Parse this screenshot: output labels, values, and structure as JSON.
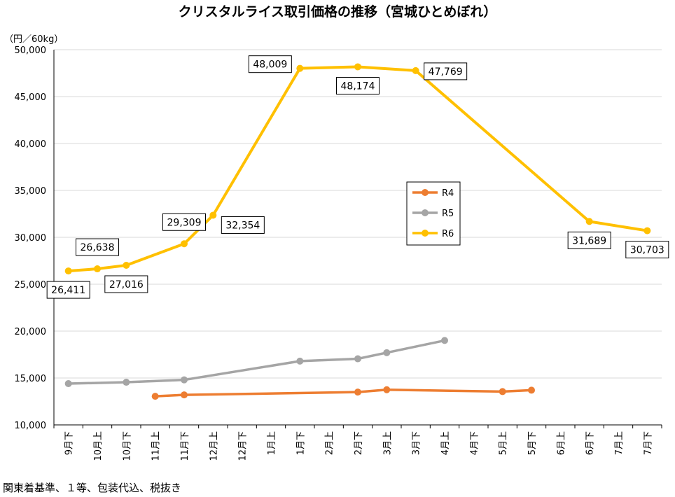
{
  "chart_data": {
    "type": "line",
    "title": "クリスタルライス取引価格の推移（宮城ひとめぼれ）",
    "unit_label": "（円／60kg）",
    "categories": [
      "9月下",
      "10月上",
      "10月下",
      "11月上",
      "11月下",
      "12月上",
      "12月下",
      "1月上",
      "1月下",
      "2月上",
      "2月下",
      "3月上",
      "3月下",
      "4月上",
      "4月下",
      "5月上",
      "5月下",
      "6月上",
      "6月下",
      "7月上",
      "7月下"
    ],
    "ylim": [
      10000,
      50000
    ],
    "yticks": [
      10000,
      15000,
      20000,
      25000,
      30000,
      35000,
      40000,
      45000,
      50000
    ],
    "ytick_labels": [
      "10,000",
      "15,000",
      "20,000",
      "25,000",
      "30,000",
      "35,000",
      "40,000",
      "45,000",
      "50,000"
    ],
    "grid": true,
    "legend_position": "center-right",
    "series": [
      {
        "name": "R4",
        "color": "#ED7D31",
        "points": [
          [
            3,
            13050
          ],
          [
            4,
            13200
          ],
          [
            10,
            13500
          ],
          [
            11,
            13750
          ],
          [
            15,
            13550
          ],
          [
            16,
            13700
          ]
        ]
      },
      {
        "name": "R5",
        "color": "#A5A5A5",
        "points": [
          [
            0,
            14400
          ],
          [
            2,
            14550
          ],
          [
            4,
            14800
          ],
          [
            8,
            16800
          ],
          [
            10,
            17050
          ],
          [
            11,
            17700
          ],
          [
            13,
            19000
          ]
        ]
      },
      {
        "name": "R6",
        "color": "#FFC000",
        "points": [
          [
            0,
            26411
          ],
          [
            1,
            26638
          ],
          [
            2,
            27016
          ],
          [
            4,
            29309
          ],
          [
            5,
            32354
          ],
          [
            8,
            48009
          ],
          [
            10,
            48174
          ],
          [
            12,
            47769
          ],
          [
            18,
            31689
          ],
          [
            20,
            30703
          ]
        ]
      }
    ],
    "data_labels": [
      {
        "text": "26,411",
        "idx": 0,
        "pos": "below"
      },
      {
        "text": "26,638",
        "idx": 1,
        "pos": "above"
      },
      {
        "text": "27,016",
        "idx": 2,
        "pos": "below"
      },
      {
        "text": "29,309",
        "idx": 3,
        "pos": "above"
      },
      {
        "text": "32,354",
        "idx": 4,
        "pos": "below-right"
      },
      {
        "text": "48,009",
        "idx": 5,
        "pos": "left"
      },
      {
        "text": "48,174",
        "idx": 6,
        "pos": "below"
      },
      {
        "text": "47,769",
        "idx": 7,
        "pos": "right"
      },
      {
        "text": "31,689",
        "idx": 8,
        "pos": "below"
      },
      {
        "text": "30,703",
        "idx": 9,
        "pos": "below"
      }
    ]
  },
  "footnote": "関東着基準、１等、包装代込、税抜き"
}
